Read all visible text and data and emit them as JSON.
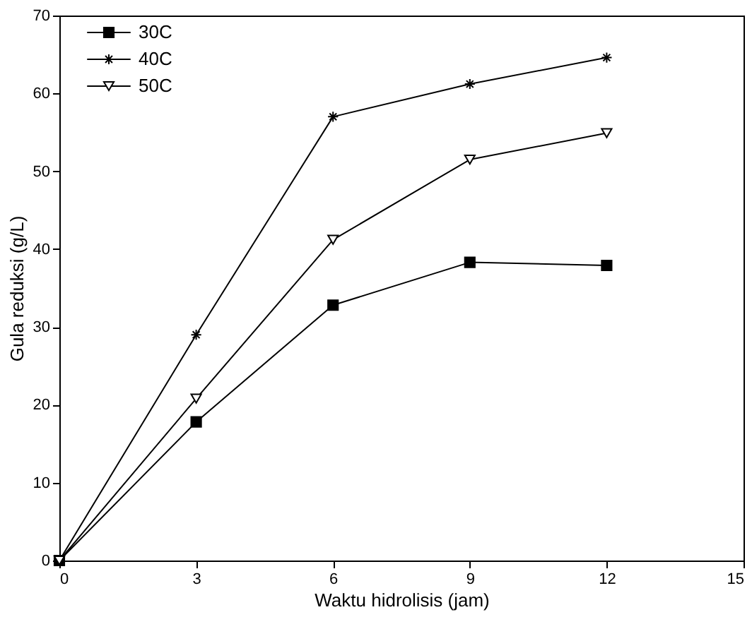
{
  "chart_data": {
    "type": "line",
    "xlabel": "Waktu hidrolisis (jam)",
    "ylabel": "Gula reduksi (g/L)",
    "x": [
      0,
      3,
      6,
      9,
      12
    ],
    "series": [
      {
        "name": "30C",
        "color": "#000000",
        "marker": "square",
        "values": [
          0,
          17.8,
          32.8,
          38.3,
          37.9
        ]
      },
      {
        "name": "40C",
        "color": "#000000",
        "marker": "cross",
        "values": [
          0,
          29,
          57,
          61.2,
          64.6
        ]
      },
      {
        "name": "50C",
        "color": "#000000",
        "marker": "triangle",
        "values": [
          0,
          20.8,
          41.2,
          51.5,
          54.9
        ]
      }
    ],
    "xlim": [
      0,
      15
    ],
    "xticks": [
      0,
      3,
      6,
      9,
      12,
      15
    ],
    "ylim": [
      0,
      70
    ],
    "yticks": [
      0,
      10,
      20,
      30,
      40,
      50,
      60,
      70
    ],
    "grid": false,
    "legend": "top left",
    "line_style": "solid"
  }
}
